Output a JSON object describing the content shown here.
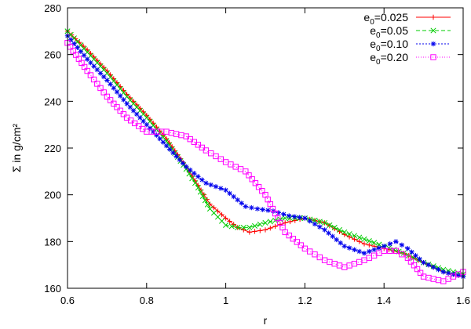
{
  "chart_data": {
    "type": "line",
    "xlabel": "r",
    "ylabel": "Σ in g/cm²",
    "xlim": [
      0.6,
      1.6
    ],
    "ylim": [
      160,
      280
    ],
    "xticks": [
      0.6,
      0.8,
      1.0,
      1.2,
      1.4,
      1.6
    ],
    "xtick_labels": [
      "0.6",
      "0.8",
      "1",
      "1.2",
      "1.4",
      "1.6"
    ],
    "yticks": [
      160,
      180,
      200,
      220,
      240,
      260,
      280
    ],
    "ytick_labels": [
      "160",
      "180",
      "200",
      "220",
      "240",
      "260",
      "280"
    ],
    "grid": false,
    "legend_position": "top-right",
    "series": [
      {
        "name": "e0=0.025",
        "name_base": "e",
        "name_sub": "0",
        "name_rest": "=0.025",
        "color": "#ff0000",
        "marker": "plus",
        "dash": "",
        "x": [
          0.6,
          0.65,
          0.7,
          0.75,
          0.8,
          0.85,
          0.9,
          0.93,
          0.96,
          1.0,
          1.03,
          1.06,
          1.1,
          1.15,
          1.2,
          1.25,
          1.3,
          1.35,
          1.4,
          1.45,
          1.5,
          1.55,
          1.6
        ],
        "values": [
          270,
          262,
          253,
          243,
          234,
          224,
          212,
          204,
          196,
          190,
          186,
          184,
          185,
          188,
          190,
          188,
          183,
          179,
          177,
          175,
          171,
          167,
          165
        ]
      },
      {
        "name": "e0=0.05",
        "name_base": "e",
        "name_sub": "0",
        "name_rest": "=0.05",
        "color": "#00cc00",
        "marker": "x",
        "dash": "5,3",
        "x": [
          0.6,
          0.65,
          0.7,
          0.75,
          0.8,
          0.85,
          0.9,
          0.93,
          0.96,
          1.0,
          1.03,
          1.06,
          1.1,
          1.15,
          1.2,
          1.25,
          1.3,
          1.35,
          1.4,
          1.45,
          1.5,
          1.55,
          1.6
        ],
        "values": [
          270,
          261,
          252,
          242,
          233,
          223,
          211,
          203,
          194,
          187,
          186,
          186,
          188,
          190,
          190,
          188,
          184,
          181,
          178,
          175,
          171,
          168,
          166
        ]
      },
      {
        "name": "e0=0.10",
        "name_base": "e",
        "name_sub": "0",
        "name_rest": "=0.10",
        "color": "#0000ee",
        "marker": "star",
        "dash": "2,2",
        "x": [
          0.6,
          0.65,
          0.7,
          0.75,
          0.8,
          0.85,
          0.9,
          0.95,
          1.0,
          1.05,
          1.08,
          1.12,
          1.16,
          1.2,
          1.25,
          1.3,
          1.35,
          1.4,
          1.43,
          1.46,
          1.5,
          1.55,
          1.6
        ],
        "values": [
          268,
          258,
          249,
          239,
          230,
          221,
          212,
          205,
          202,
          195,
          194,
          193,
          191,
          190,
          185,
          178,
          175,
          178,
          180,
          177,
          171,
          167,
          165
        ]
      },
      {
        "name": "e0=0.20",
        "name_base": "e",
        "name_sub": "0",
        "name_rest": "=0.20",
        "color": "#ff00ff",
        "marker": "square",
        "dash": "1,2",
        "x": [
          0.6,
          0.65,
          0.7,
          0.75,
          0.8,
          0.85,
          0.9,
          0.95,
          1.0,
          1.05,
          1.1,
          1.15,
          1.2,
          1.25,
          1.3,
          1.35,
          1.4,
          1.43,
          1.46,
          1.5,
          1.55,
          1.6
        ],
        "values": [
          265,
          253,
          242,
          233,
          227,
          227,
          225,
          219,
          214,
          210,
          200,
          184,
          177,
          172,
          169,
          172,
          176,
          176,
          173,
          165,
          163,
          167
        ]
      }
    ]
  }
}
